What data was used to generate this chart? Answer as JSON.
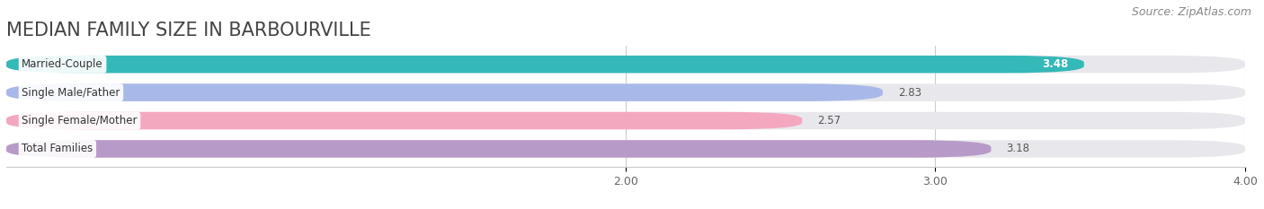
{
  "title": "MEDIAN FAMILY SIZE IN BARBOURVILLE",
  "source": "Source: ZipAtlas.com",
  "categories": [
    "Married-Couple",
    "Single Male/Father",
    "Single Female/Mother",
    "Total Families"
  ],
  "values": [
    3.48,
    2.83,
    2.57,
    3.18
  ],
  "bar_colors": [
    "#35b8b8",
    "#a8b8e8",
    "#f4a8c0",
    "#b89ac8"
  ],
  "value_label_colors": [
    "#ffffff",
    "#555555",
    "#555555",
    "#555555"
  ],
  "xlim_data": [
    0.0,
    4.0
  ],
  "xlim_display": [
    2.0,
    4.0
  ],
  "xticks": [
    2.0,
    3.0,
    4.0
  ],
  "xtick_labels": [
    "2.00",
    "3.00",
    "4.00"
  ],
  "background_color": "#ffffff",
  "bar_background_color": "#e8e8ec",
  "title_fontsize": 15,
  "source_fontsize": 9,
  "bar_height": 0.62,
  "bar_gap": 0.38,
  "figsize": [
    14.06,
    2.33
  ],
  "dpi": 100
}
